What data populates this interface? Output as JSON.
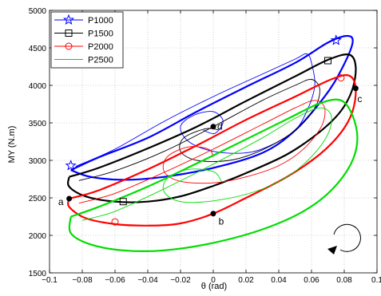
{
  "chart_data": {
    "type": "line",
    "title": "",
    "xlabel": "θ (rad)",
    "ylabel": "MY (N.m)",
    "xlim": [
      -0.1,
      0.1
    ],
    "ylim": [
      1500,
      5000
    ],
    "xticks": [
      -0.1,
      -0.08,
      -0.06,
      -0.04,
      -0.02,
      0,
      0.02,
      0.04,
      0.06,
      0.08,
      0.1
    ],
    "xtick_labels": [
      "−0.1",
      "−0.08",
      "−0.06",
      "−0.04",
      "−0.02",
      "0",
      "0.02",
      "0.04",
      "0.06",
      "0.08",
      "0.1"
    ],
    "yticks": [
      1500,
      2000,
      2500,
      3000,
      3500,
      4000,
      4500,
      5000
    ],
    "ytick_labels": [
      "1500",
      "2000",
      "2500",
      "3000",
      "3500",
      "4000",
      "4500",
      "5000"
    ],
    "grid": true,
    "legend_position": "top-left",
    "series": [
      {
        "name": "P1000",
        "color": "#0000ff",
        "marker": "star",
        "marker_points": [
          [
            0.075,
            4600
          ],
          [
            -0.087,
            2930
          ]
        ],
        "thick": [
          [
            -0.087,
            2870
          ],
          [
            -0.07,
            3040
          ],
          [
            -0.04,
            3300
          ],
          [
            -0.01,
            3650
          ],
          [
            0.02,
            3980
          ],
          [
            0.05,
            4300
          ],
          [
            0.07,
            4570
          ],
          [
            0.082,
            4660
          ],
          [
            0.085,
            4560
          ],
          [
            0.078,
            4200
          ],
          [
            0.068,
            3850
          ],
          [
            0.05,
            3400
          ],
          [
            0.03,
            3100
          ],
          [
            0.0,
            2900
          ],
          [
            -0.03,
            2780
          ],
          [
            -0.055,
            2740
          ],
          [
            -0.075,
            2780
          ],
          [
            -0.087,
            2870
          ]
        ],
        "thin": [
          [
            -0.084,
            2920
          ],
          [
            -0.06,
            3150
          ],
          [
            -0.03,
            3520
          ],
          [
            0.0,
            3850
          ],
          [
            0.03,
            4150
          ],
          [
            0.05,
            4350
          ],
          [
            0.057,
            4420
          ],
          [
            0.06,
            4300
          ],
          [
            0.062,
            4000
          ],
          [
            0.058,
            3700
          ],
          [
            0.05,
            3400
          ],
          [
            0.035,
            3200
          ],
          [
            0.02,
            3100
          ],
          [
            0.0,
            3120
          ],
          [
            -0.015,
            3250
          ],
          [
            -0.02,
            3450
          ],
          [
            -0.012,
            3600
          ],
          [
            0.0,
            3650
          ],
          [
            0.006,
            3520
          ],
          [
            0.001,
            3360
          ],
          [
            -0.006,
            3400
          ]
        ]
      },
      {
        "name": "P1500",
        "color": "#000000",
        "marker": "square",
        "marker_points": [
          [
            0.07,
            4330
          ],
          [
            -0.055,
            2450
          ]
        ],
        "thick": [
          [
            -0.088,
            2780
          ],
          [
            -0.07,
            2900
          ],
          [
            -0.04,
            3160
          ],
          [
            -0.01,
            3450
          ],
          [
            0.02,
            3790
          ],
          [
            0.05,
            4120
          ],
          [
            0.07,
            4340
          ],
          [
            0.083,
            4410
          ],
          [
            0.087,
            4250
          ],
          [
            0.085,
            3950
          ],
          [
            0.078,
            3660
          ],
          [
            0.065,
            3380
          ],
          [
            0.045,
            3080
          ],
          [
            0.02,
            2830
          ],
          [
            0.0,
            2660
          ],
          [
            -0.02,
            2520
          ],
          [
            -0.04,
            2450
          ],
          [
            -0.06,
            2450
          ],
          [
            -0.078,
            2520
          ],
          [
            -0.088,
            2650
          ],
          [
            -0.088,
            2780
          ]
        ],
        "thin": [
          [
            -0.082,
            2730
          ],
          [
            -0.06,
            2860
          ],
          [
            -0.03,
            3120
          ],
          [
            0.0,
            3450
          ],
          [
            0.03,
            3800
          ],
          [
            0.05,
            4000
          ],
          [
            0.06,
            4080
          ],
          [
            0.065,
            3950
          ],
          [
            0.062,
            3700
          ],
          [
            0.05,
            3400
          ],
          [
            0.03,
            3140
          ],
          [
            0.01,
            3000
          ],
          [
            -0.01,
            3000
          ],
          [
            -0.02,
            3120
          ],
          [
            -0.018,
            3300
          ],
          [
            -0.005,
            3420
          ],
          [
            0.003,
            3410
          ]
        ]
      },
      {
        "name": "P2000",
        "color": "#ff0000",
        "marker": "circle",
        "marker_points": [
          [
            0.078,
            4100
          ],
          [
            -0.06,
            2180
          ]
        ],
        "thick": [
          [
            -0.088,
            2490
          ],
          [
            -0.07,
            2600
          ],
          [
            -0.04,
            2880
          ],
          [
            -0.01,
            3200
          ],
          [
            0.02,
            3540
          ],
          [
            0.05,
            3850
          ],
          [
            0.072,
            4080
          ],
          [
            0.083,
            4130
          ],
          [
            0.087,
            3960
          ],
          [
            0.085,
            3650
          ],
          [
            0.078,
            3370
          ],
          [
            0.065,
            3080
          ],
          [
            0.045,
            2780
          ],
          [
            0.02,
            2500
          ],
          [
            0.0,
            2290
          ],
          [
            -0.02,
            2160
          ],
          [
            -0.04,
            2130
          ],
          [
            -0.06,
            2150
          ],
          [
            -0.078,
            2230
          ],
          [
            -0.088,
            2380
          ],
          [
            -0.088,
            2490
          ]
        ],
        "thin": [
          [
            -0.082,
            2430
          ],
          [
            -0.06,
            2560
          ],
          [
            -0.03,
            2840
          ],
          [
            0.0,
            3150
          ],
          [
            0.03,
            3480
          ],
          [
            0.05,
            3700
          ],
          [
            0.062,
            3800
          ],
          [
            0.068,
            3700
          ],
          [
            0.066,
            3450
          ],
          [
            0.055,
            3150
          ],
          [
            0.04,
            2930
          ],
          [
            0.02,
            2780
          ],
          [
            0.0,
            2700
          ],
          [
            -0.02,
            2720
          ],
          [
            -0.03,
            2850
          ],
          [
            -0.028,
            3050
          ],
          [
            -0.015,
            3180
          ],
          [
            -0.003,
            3150
          ],
          [
            0.0,
            3050
          ]
        ]
      },
      {
        "name": "P2500",
        "color": "#00dd00",
        "marker": "none",
        "marker_points": [],
        "thick": [
          [
            -0.087,
            2250
          ],
          [
            -0.07,
            2380
          ],
          [
            -0.04,
            2650
          ],
          [
            -0.01,
            2960
          ],
          [
            0.02,
            3280
          ],
          [
            0.045,
            3550
          ],
          [
            0.065,
            3760
          ],
          [
            0.078,
            3800
          ],
          [
            0.085,
            3600
          ],
          [
            0.088,
            3280
          ],
          [
            0.084,
            2950
          ],
          [
            0.072,
            2600
          ],
          [
            0.055,
            2320
          ],
          [
            0.03,
            2080
          ],
          [
            0.0,
            1900
          ],
          [
            -0.03,
            1800
          ],
          [
            -0.055,
            1800
          ],
          [
            -0.075,
            1880
          ],
          [
            -0.087,
            2030
          ],
          [
            -0.087,
            2250
          ]
        ],
        "thin": [
          [
            -0.08,
            2200
          ],
          [
            -0.06,
            2320
          ],
          [
            -0.03,
            2620
          ],
          [
            0.0,
            2950
          ],
          [
            0.03,
            3300
          ],
          [
            0.05,
            3560
          ],
          [
            0.065,
            3700
          ],
          [
            0.072,
            3600
          ],
          [
            0.07,
            3350
          ],
          [
            0.06,
            3050
          ],
          [
            0.045,
            2780
          ],
          [
            0.025,
            2580
          ],
          [
            0.0,
            2460
          ],
          [
            -0.02,
            2450
          ],
          [
            -0.03,
            2580
          ],
          [
            -0.028,
            2760
          ],
          [
            -0.015,
            2880
          ],
          [
            0.0,
            2850
          ],
          [
            0.005,
            2720
          ]
        ]
      }
    ],
    "annotations": [
      {
        "label": "a",
        "x": -0.088,
        "y": 2490,
        "anchor": "left"
      },
      {
        "label": "b",
        "x": 0.0,
        "y": 2290,
        "anchor": "below"
      },
      {
        "label": "c",
        "x": 0.087,
        "y": 3960,
        "anchor": "below-right"
      },
      {
        "label": "d",
        "x": 0.0,
        "y": 3450,
        "anchor": "right"
      }
    ]
  }
}
